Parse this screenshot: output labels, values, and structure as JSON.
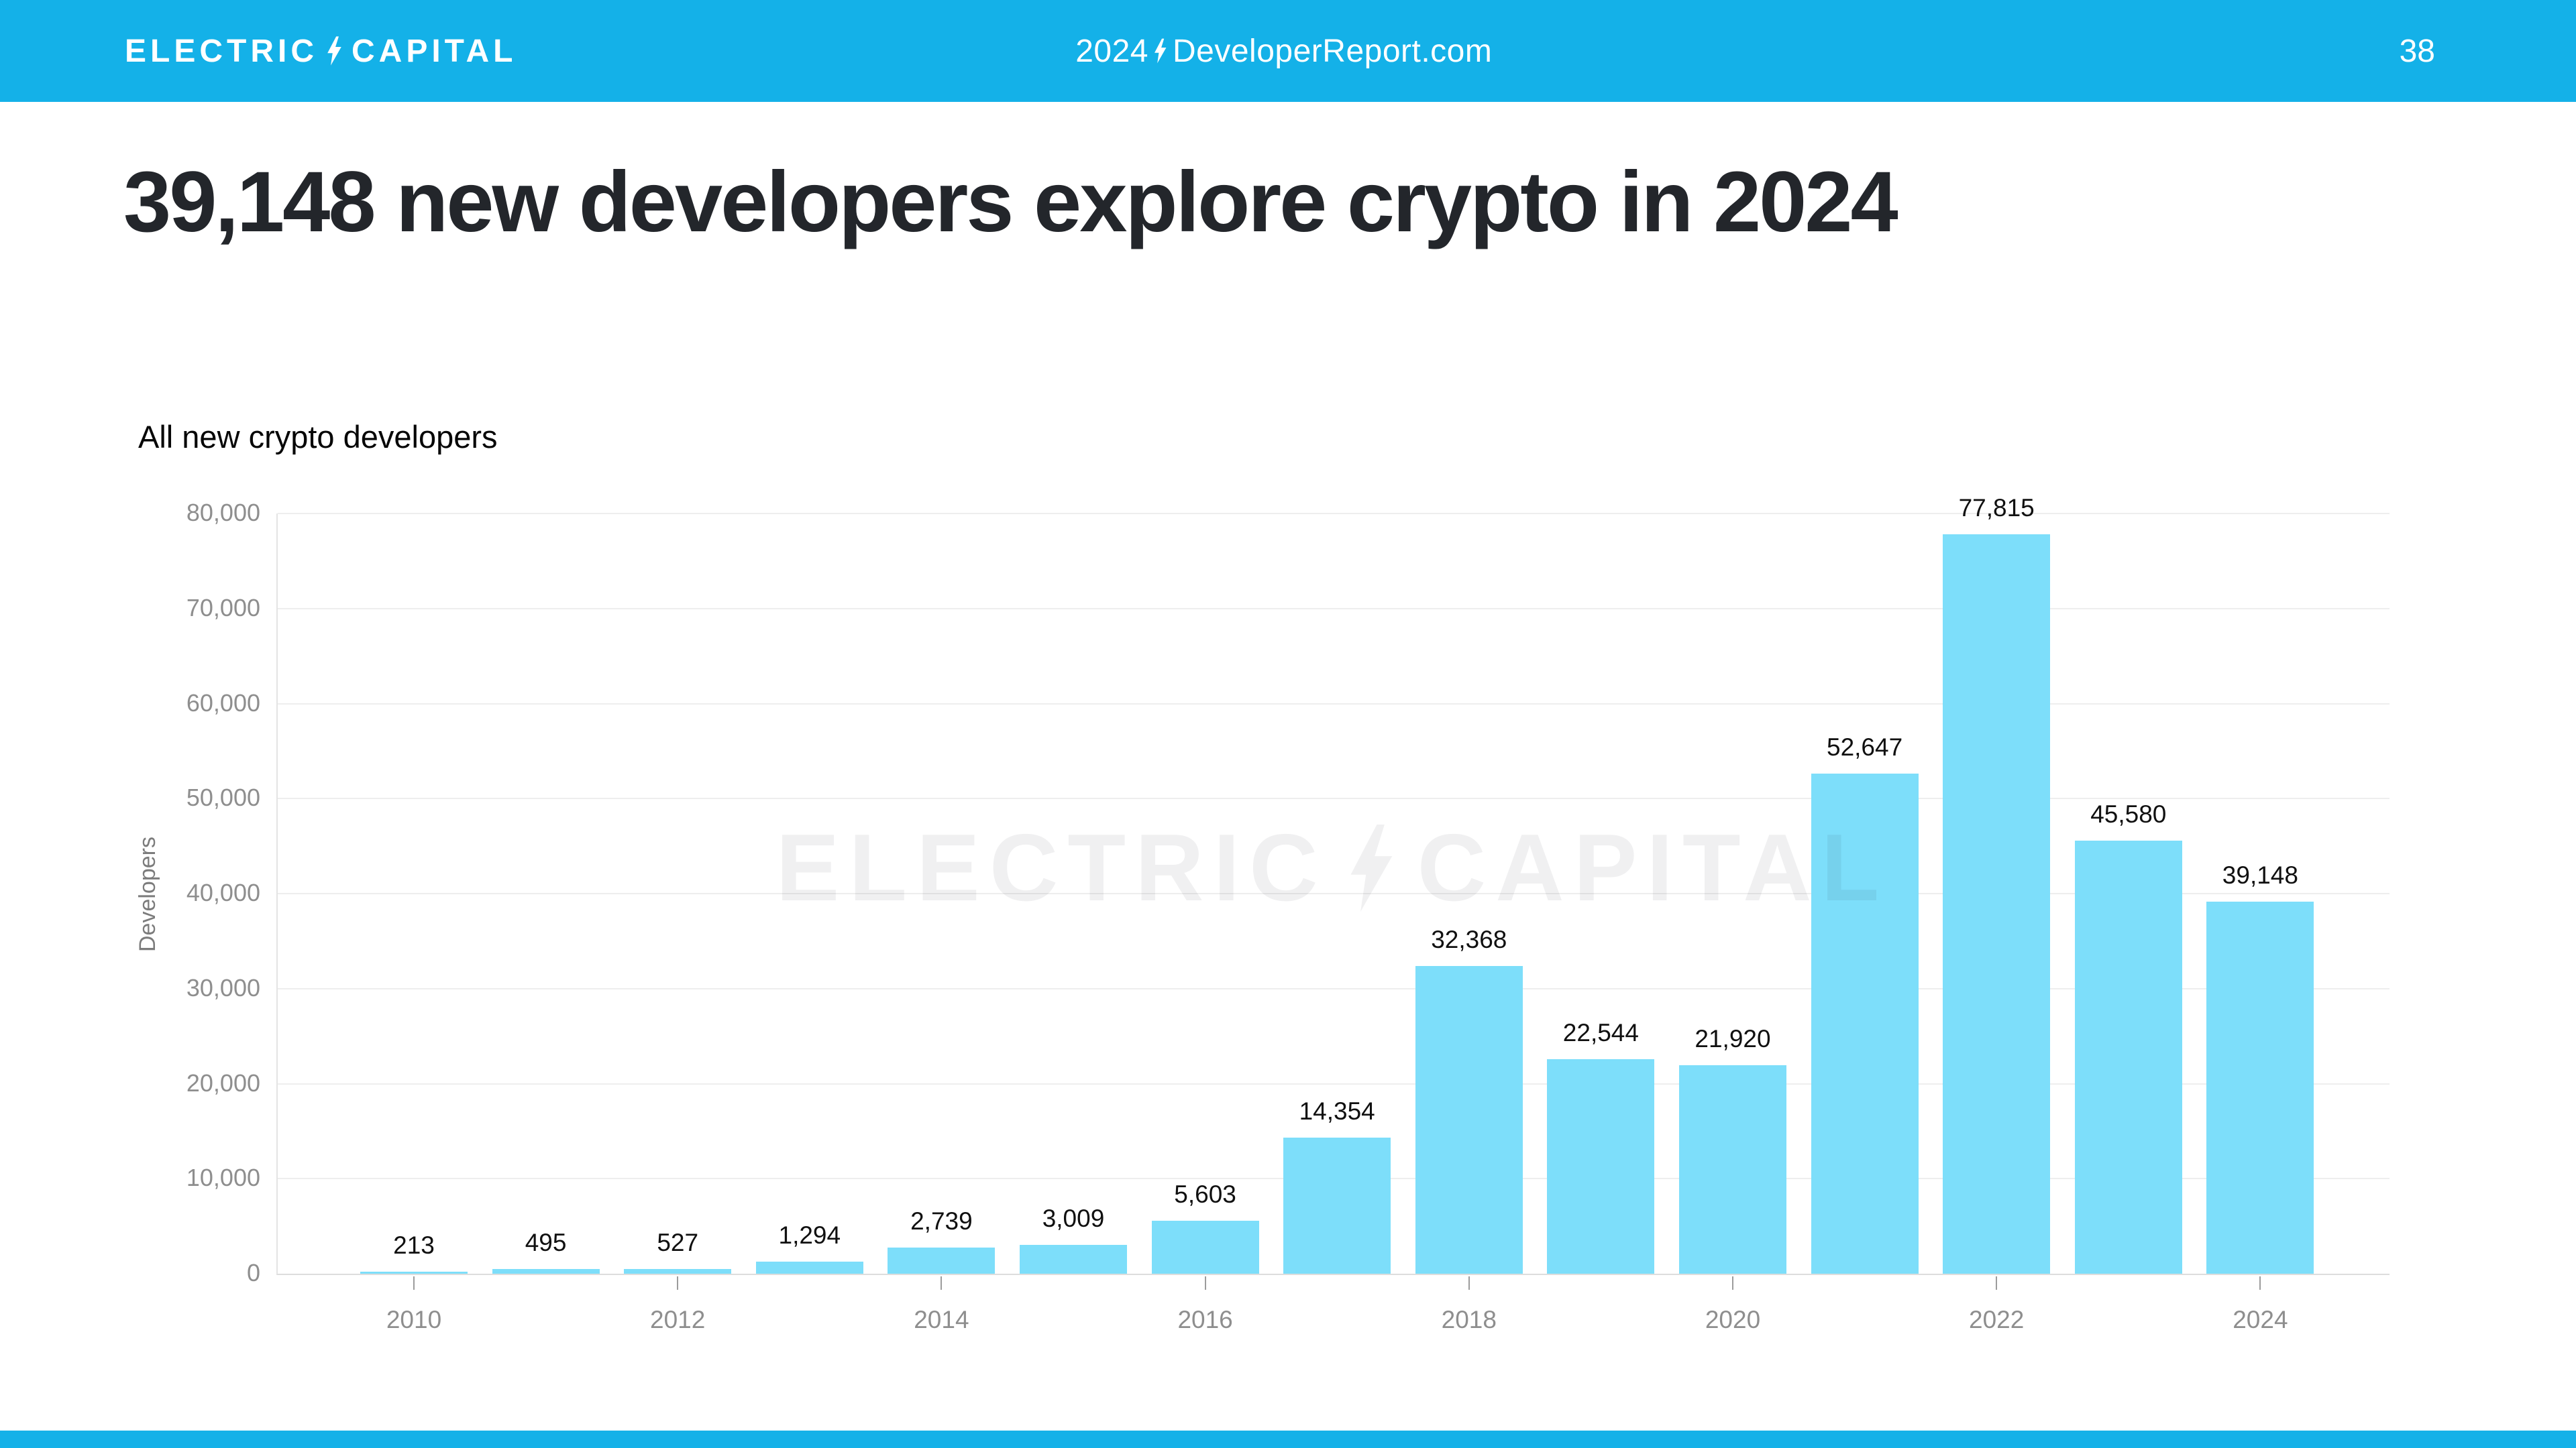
{
  "header": {
    "logo": {
      "part1": "ELECTRIC",
      "part2": "CAPITAL"
    },
    "center": {
      "year": "2024",
      "site": "DeveloperReport.com"
    },
    "page_number": "38"
  },
  "title": "39,148 new developers explore crypto in 2024",
  "watermark": {
    "part1": "ELECTRIC",
    "part2": "CAPITAL"
  },
  "chart_data": {
    "type": "bar",
    "title": "All new crypto developers",
    "xlabel": "",
    "ylabel": "Developers",
    "categories": [
      2010,
      2011,
      2012,
      2013,
      2014,
      2015,
      2016,
      2017,
      2018,
      2019,
      2020,
      2021,
      2022,
      2023,
      2024
    ],
    "values": [
      213,
      495,
      527,
      1294,
      2739,
      3009,
      5603,
      14354,
      32368,
      22544,
      21920,
      52647,
      77815,
      45580,
      39148
    ],
    "value_labels": [
      "213",
      "495",
      "527",
      "1,294",
      "2,739",
      "3,009",
      "5,603",
      "14,354",
      "32,368",
      "22,544",
      "21,920",
      "52,647",
      "77,815",
      "45,580",
      "39,148"
    ],
    "ylim": [
      0,
      80000
    ],
    "ytick_values": [
      0,
      10000,
      20000,
      30000,
      40000,
      50000,
      60000,
      70000,
      80000
    ],
    "ytick_labels": [
      "0",
      "10,000",
      "20,000",
      "30,000",
      "40,000",
      "50,000",
      "60,000",
      "70,000",
      "80,000"
    ],
    "xticks_shown": [
      "2010",
      "2012",
      "2014",
      "2016",
      "2018",
      "2020",
      "2022",
      "2024"
    ],
    "grid": true,
    "legend": "none",
    "bar_color": "#7DDEFA",
    "colors": {
      "accent_cyan": "#14B1E8",
      "bar_cyan": "#7DDEFA",
      "title_text": "#23262B",
      "axis_text": "#8E8E8E",
      "gridline": "#EEEEEE",
      "watermark": "#F0F0F1"
    }
  }
}
